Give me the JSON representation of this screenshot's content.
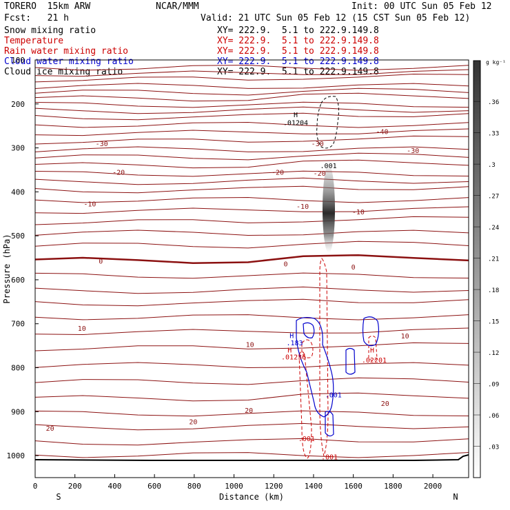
{
  "header": {
    "model": "TORERO  15km ARW",
    "center": "NCAR/MMM",
    "init": "Init: 00 UTC Sun 05 Feb 12",
    "fcst": "Fcst:   21 h",
    "valid": "Valid: 21 UTC Sun 05 Feb 12 (15 CST Sun 05 Feb 12)"
  },
  "fields": [
    {
      "name": "Snow mixing ratio",
      "xy": "XY= 222.9.  5.1 to 222.9.149.8",
      "color": "#000000"
    },
    {
      "name": "Temperature",
      "xy": "XY= 222.9.  5.1 to 222.9.149.8",
      "color": "#cc0000"
    },
    {
      "name": "Rain water mixing ratio",
      "xy": "XY= 222.9.  5.1 to 222.9.149.8",
      "color": "#cc0000"
    },
    {
      "name": "Cloud water mixing ratio",
      "xy": "XY= 222.9.  5.1 to 222.9.149.8",
      "color": "#0000cc"
    },
    {
      "name": "Cloud ice mixing ratio",
      "xy": "XY= 222.9.  5.1 to 222.9.149.8",
      "color": "#000000"
    }
  ],
  "chart_data": {
    "type": "cross-section",
    "xlabel": "Distance (km)",
    "ylabel": "Pressure (hPa)",
    "x_endpoints": {
      "left": "S",
      "right": "N"
    },
    "xlim": [
      0,
      2180
    ],
    "ylim": [
      1050,
      100
    ],
    "x_ticks": [
      0,
      200,
      400,
      600,
      800,
      1000,
      1200,
      1400,
      1600,
      1800,
      2000
    ],
    "y_ticks": [
      200,
      300,
      400,
      500,
      600,
      700,
      800,
      900,
      1000
    ],
    "y_tick_labels": [
      "200",
      "300",
      "400",
      "500",
      "600",
      "700",
      "800",
      "900",
      "1000"
    ],
    "y_top_label": "100",
    "colorbar": {
      "unit": "g kg⁻¹",
      "ticks": [
        ".03",
        ".06",
        ".09",
        ".12",
        ".15",
        ".18",
        ".21",
        ".24",
        ".27",
        ".3",
        ".33",
        ".36"
      ]
    },
    "temperature_labels": [
      {
        "text": "-40",
        "x": 1745,
        "p": 262
      },
      {
        "text": "-30",
        "x": 335,
        "p": 290
      },
      {
        "text": "-30",
        "x": 1900,
        "p": 305
      },
      {
        "text": "-30",
        "x": 1420,
        "p": 290
      },
      {
        "text": "-20",
        "x": 420,
        "p": 355
      },
      {
        "text": "-20",
        "x": 1220,
        "p": 355
      },
      {
        "text": "-20",
        "x": 1430,
        "p": 357
      },
      {
        "text": "-10",
        "x": 275,
        "p": 427
      },
      {
        "text": "-10",
        "x": 1345,
        "p": 432
      },
      {
        "text": "-10",
        "x": 1625,
        "p": 445
      },
      {
        "text": "0",
        "x": 330,
        "p": 557
      },
      {
        "text": "0",
        "x": 1260,
        "p": 563
      },
      {
        "text": "0",
        "x": 1600,
        "p": 570
      },
      {
        "text": "10",
        "x": 235,
        "p": 710
      },
      {
        "text": "10",
        "x": 1080,
        "p": 747
      },
      {
        "text": "10",
        "x": 1860,
        "p": 727
      },
      {
        "text": "20",
        "x": 75,
        "p": 937
      },
      {
        "text": "20",
        "x": 795,
        "p": 922
      },
      {
        "text": "20",
        "x": 1075,
        "p": 896
      },
      {
        "text": "20",
        "x": 1760,
        "p": 881
      }
    ],
    "contour_labels": [
      {
        "text": "H",
        "x": 1310,
        "p": 224,
        "color": "#000000"
      },
      {
        "text": ".01204",
        "x": 1310,
        "p": 242,
        "color": "#000000"
      },
      {
        "text": ".001",
        "x": 1475,
        "p": 340,
        "color": "#000000"
      },
      {
        "text": "H",
        "x": 1290,
        "p": 726,
        "color": "#0000cc"
      },
      {
        "text": ".183",
        "x": 1305,
        "p": 743,
        "color": "#0000cc"
      },
      {
        "text": "H",
        "x": 1280,
        "p": 759,
        "color": "#cc0000"
      },
      {
        "text": ".01236",
        "x": 1300,
        "p": 775,
        "color": "#cc0000"
      },
      {
        "text": ".001",
        "x": 1500,
        "p": 861,
        "color": "#0000cc"
      },
      {
        "text": ".001",
        "x": 1365,
        "p": 961,
        "color": "#cc0000"
      },
      {
        "text": ".001",
        "x": 1480,
        "p": 1002,
        "color": "#cc0000"
      },
      {
        "text": "H",
        "x": 1695,
        "p": 759,
        "color": "#cc0000"
      },
      {
        "text": ".02201",
        "x": 1705,
        "p": 782,
        "color": "#cc0000"
      }
    ]
  }
}
